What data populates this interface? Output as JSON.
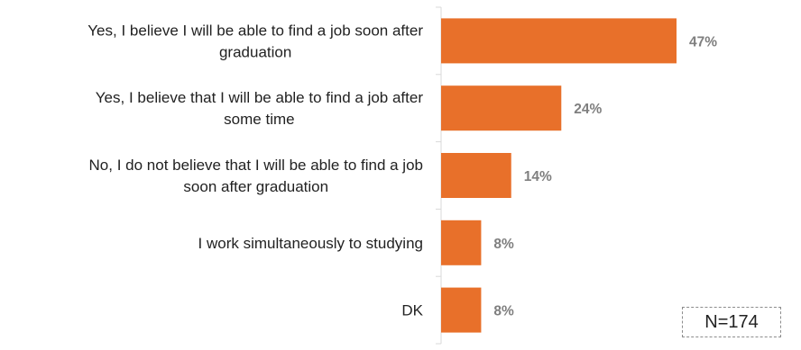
{
  "chart_data": {
    "type": "bar",
    "orientation": "horizontal",
    "categories": [
      [
        "Yes, I believe I will be able to find a job soon after",
        "graduation"
      ],
      [
        "Yes, I believe that I will be able to find a job after",
        "some time"
      ],
      [
        "No, I do not believe that I will be able to find a job",
        "soon after graduation"
      ],
      [
        "I work simultaneously to studying"
      ],
      [
        "DK"
      ]
    ],
    "values": [
      47,
      24,
      14,
      8,
      8
    ],
    "value_labels": [
      "47%",
      "24%",
      "14%",
      "8%",
      "8%"
    ],
    "value_unit": "%",
    "xlim": [
      0,
      50
    ],
    "bar_color": "#E8702A",
    "axis_color": "#d9d9d9",
    "value_label_color": "#7f7f7f",
    "grid": false,
    "legend": "none"
  },
  "note": {
    "sample_size": "N=174"
  }
}
